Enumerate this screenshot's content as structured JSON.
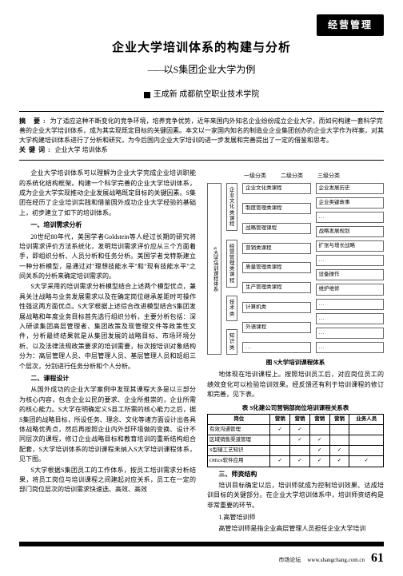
{
  "badge": "经营管理",
  "title": "企业大学培训体系的构建与分析",
  "subtitle": "以S集团企业大学为例",
  "authors_prefix_square": true,
  "authors": "王成新  成都航空职业技术学院",
  "abstract": {
    "label": "摘  要:",
    "text": "为了适应这种不断变化的竞争环境，培养竞争优势，近年来国内外知名企业纷纷成立企业大学，而如何构建一套科学完善的企业大学培训体系，成为其实现既定目标的关键因素。本文以一家国内知名的制造业企业集团创办的企业大学作为样案，对其大学构建培训体系进行了分析和研究，为今后国内企业大学培训的进一步发展和完善提出了一定的借鉴和思考。"
  },
  "keywords": {
    "label": "关键词:",
    "text": "企业大学  培训体系"
  },
  "left_column": {
    "p1": "企业大学培训体系可以理解为企业大学完成企业培训职能的系统化结构框架。构建一个科学完善的企业大学培训体系，成为企业大学实现推动企业发展战略既定目标的关键因素。S集团在经历了企业培训实践和借鉴国外成功企业大学经验的基础上，初步建立了如下的培训体系。",
    "h1": "一、培训需求分析",
    "p2": "20世纪80年代，美国学者Goldstein等人经过长期的研究将培训需求评价方法系统化，发明培训需求评价应从三个方面着手，即组织分析、人员分析和任务分析。美国学者戈特斯建立一种分析模型，是通过对\"理想技能水平\"和\"现有技能水平\"之间关系的分析来确定培训需求的。",
    "p3": "S大学采用的培训需求分析模型结合上述两个模型优点，兼具关注战略与业务发展需求以及在确定岗位继承差距时可操作性强这两方面优点。S大学根据上述综合改进模型结合S集团发展战略和年度业务目标首先选行组织分析，主要分析包括：深入研读集团高层管理者、集团政策及现管理文件等政策性文件，分析最终结果就是从集团发展的战略目标、市场环境分析、以及法律法规政策要求的培训需要，标次按培训对象结构分为：高层管理人员、中层管理人员、基层管理人员和班组三个层次，分别进行任务分析和个人分析。",
    "h2": "二、课程设计",
    "p4": "从国外成功的企业大学案例中发现其课程大多是以三部分为核心内容，包含企业公民的要求、企业所推崇的，企业所需的核心能力。S大学在明确定义S县工所需的核心能力之后，据S集团的战略目标，所设任务、理念、文化等诸方面设计出各具体战略优秀点，然后再按照企业内外部环境做的变换、设计不同层次的课程，修订企业战略目标和教育培训的重新结构组合配套，S大学培训体系的培训课程未纳入S大学培训课程体系，见下图。",
    "p5": "S大学根据S集团员工的工作体系，按员工培训需求分析结果，将员工岗位与培训课程之间建起对应关系，员工在一定的部门岗位层次的培训需求快速选、高效、高效"
  },
  "diagram": {
    "headers": [
      "一级分类",
      "二级分类",
      "三级分类"
    ],
    "root": "S大学培训课程体系",
    "level1": [
      "企业文化类课程",
      "经营管理类课程",
      "技术类",
      "知识类"
    ],
    "col2": [
      "企业文化类课程",
      "制度管理类课程",
      "战略管理课程",
      "营销类课程",
      "质量管理类课程",
      "生产管理类课程",
      "计算机类",
      "外语课程",
      "..."
    ],
    "col3": [
      "企业发展历史",
      "企业类键故事",
      "...",
      "战略发展规划",
      "扩张与增长战略",
      "...",
      "设备操作",
      "维护维修",
      "...",
      "...",
      "...",
      "..."
    ],
    "caption": "图  S大学培训课程体系"
  },
  "right_column": {
    "p1": "地体现在培训课程上。按照培训员工后，对应岗位员工的绩效变化可以检验培训效果。经反馈还有利于培训课程的修订和完善，见下表。",
    "table_caption": "表  S化建公司营销部岗位培训课程关系表",
    "h1": "三、师资结构",
    "p2": "培训目标确定以后，培训师就成为控制培训效果、达成培训目标的关键部分。在企业大学培训体系中，培训师资结构是非常重要的环节。",
    "h2": "1.高管培训师",
    "p3": "高管培训师是指企业高层管理人员担任企业大学培训"
  },
  "table": {
    "columns": [
      "岗位",
      "营销",
      "营销",
      "营销",
      "营销",
      "业务人员"
    ],
    "rows": [
      {
        "label": "有效沟通管理",
        "cells": [
          "✓",
          "✓",
          "",
          "",
          ""
        ]
      },
      {
        "label": "区域销售渠道管理",
        "cells": [
          "",
          "✓",
          "✓",
          "",
          ""
        ]
      },
      {
        "label": "S型辅工艺知识",
        "cells": [
          "",
          "",
          "✓",
          "✓",
          ""
        ]
      },
      {
        "label": "Office软件应用",
        "cells": [
          "✓",
          "✓",
          "✓",
          "✓",
          "✓"
        ]
      }
    ]
  },
  "footer": {
    "journal": "市场论坛",
    "url": "www.shangchang.com.cn",
    "page": "61"
  }
}
